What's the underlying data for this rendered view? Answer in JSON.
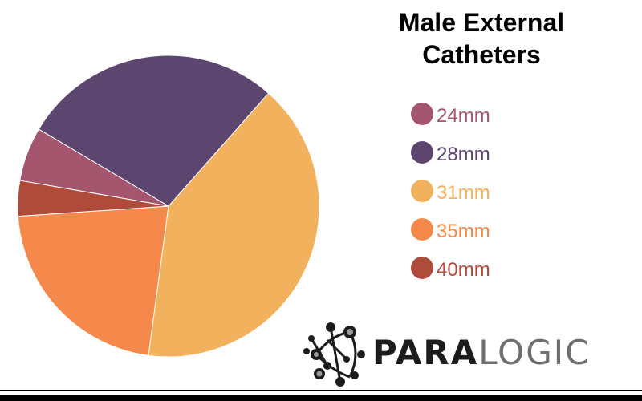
{
  "chart_data": {
    "type": "pie",
    "title": "Male External Catheters",
    "slices": [
      {
        "label": "24mm",
        "value": 5.8,
        "color": "#a3566d"
      },
      {
        "label": "28mm",
        "value": 28.0,
        "color": "#5c4670"
      },
      {
        "label": "31mm",
        "value": 40.6,
        "color": "#f2b15c"
      },
      {
        "label": "35mm",
        "value": 21.8,
        "color": "#f4894b"
      },
      {
        "label": "40mm",
        "value": 3.8,
        "color": "#ae4b3b"
      }
    ],
    "legend_position": "right"
  },
  "logo": {
    "part1": "PARA",
    "part2": "LOGIC"
  }
}
